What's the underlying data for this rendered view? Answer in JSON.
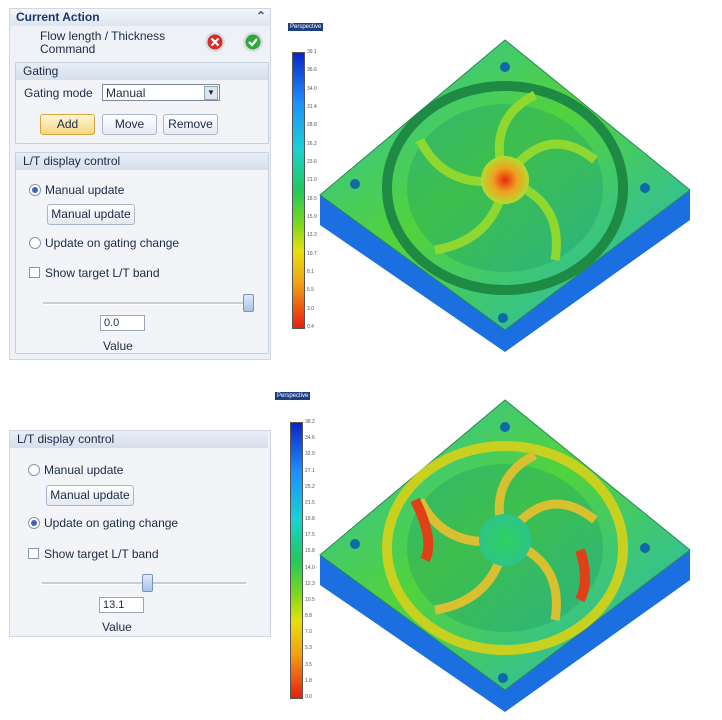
{
  "panel_top": {
    "title": "Current Action",
    "command": "Flow length / Thickness Command",
    "gating": {
      "title": "Gating",
      "mode_label": "Gating mode",
      "mode_value": "Manual",
      "buttons": [
        "Add",
        "Move",
        "Remove"
      ]
    },
    "lt": {
      "title": "L/T display control",
      "radio_manual": "Manual update",
      "button_manual": "Manual update",
      "radio_gating": "Update on gating change",
      "checkbox": "Show target L/T band",
      "field_value": "0.0",
      "field_label": "Value"
    }
  },
  "panel_bottom": {
    "lt": {
      "title": "L/T display control",
      "radio_manual": "Manual update",
      "button_manual": "Manual update",
      "radio_gating": "Update on gating change",
      "checkbox": "Show target L/T band",
      "field_value": "13.1",
      "field_label": "Value"
    }
  },
  "viewer_top": {
    "view_label": "Perspective",
    "scale_labels": [
      "39.1",
      "36.6",
      "34.0",
      "31.4",
      "28.8",
      "26.2",
      "23.6",
      "21.0",
      "18.5",
      "15.9",
      "13.3",
      "10.7",
      "8.1",
      "5.5",
      "3.0",
      "0.4"
    ]
  },
  "viewer_bottom": {
    "view_label": "Perspective",
    "scale_labels": [
      "38.2",
      "34.6",
      "32.9",
      "27.1",
      "25.2",
      "21.5",
      "19.8",
      "17.5",
      "15.8",
      "14.0",
      "12.3",
      "10.5",
      "8.8",
      "7.0",
      "5.3",
      "3.5",
      "1.8",
      "0.0"
    ]
  }
}
